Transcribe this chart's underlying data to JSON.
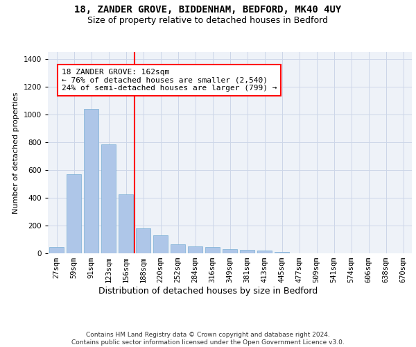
{
  "title_line1": "18, ZANDER GROVE, BIDDENHAM, BEDFORD, MK40 4UY",
  "title_line2": "Size of property relative to detached houses in Bedford",
  "xlabel": "Distribution of detached houses by size in Bedford",
  "ylabel": "Number of detached properties",
  "categories": [
    "27sqm",
    "59sqm",
    "91sqm",
    "123sqm",
    "156sqm",
    "188sqm",
    "220sqm",
    "252sqm",
    "284sqm",
    "316sqm",
    "349sqm",
    "381sqm",
    "413sqm",
    "445sqm",
    "477sqm",
    "509sqm",
    "541sqm",
    "574sqm",
    "606sqm",
    "638sqm",
    "670sqm"
  ],
  "values": [
    47,
    572,
    1040,
    787,
    423,
    178,
    128,
    63,
    50,
    46,
    28,
    25,
    18,
    10,
    0,
    0,
    0,
    0,
    0,
    0,
    0
  ],
  "bar_color": "#aec6e8",
  "bar_edge_color": "#7aafd4",
  "grid_color": "#ccd6e8",
  "bg_color": "#eef2f8",
  "annotation_text": "18 ZANDER GROVE: 162sqm\n← 76% of detached houses are smaller (2,540)\n24% of semi-detached houses are larger (799) →",
  "vline_x": 4.5,
  "ylim": [
    0,
    1450
  ],
  "yticks": [
    0,
    200,
    400,
    600,
    800,
    1000,
    1200,
    1400
  ],
  "footnote": "Contains HM Land Registry data © Crown copyright and database right 2024.\nContains public sector information licensed under the Open Government Licence v3.0.",
  "title_fontsize": 10,
  "subtitle_fontsize": 9,
  "ylabel_fontsize": 8,
  "xlabel_fontsize": 9,
  "tick_fontsize": 7.5,
  "annot_fontsize": 8,
  "footnote_fontsize": 6.5
}
